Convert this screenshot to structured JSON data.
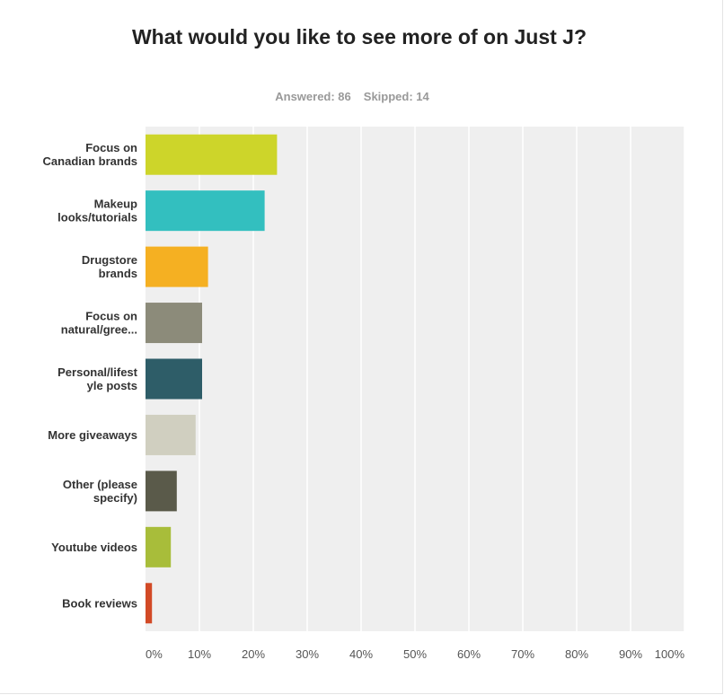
{
  "title": "What would you like to see more of on Just J?",
  "stats": {
    "answered_label": "Answered: 86",
    "skipped_label": "Skipped: 14"
  },
  "colors": {
    "plot_bg": "#efefef",
    "grid": "#ffffff"
  },
  "chart_data": {
    "type": "bar",
    "orientation": "horizontal",
    "title": "What would you like to see more of on Just J?",
    "categories": [
      [
        "Focus on",
        "Canadian brands"
      ],
      [
        "Makeup",
        "looks/tutorials"
      ],
      [
        "Drugstore",
        "brands"
      ],
      [
        "Focus on",
        "natural/gree..."
      ],
      [
        "Personal/lifest",
        "yle posts"
      ],
      [
        "More giveaways"
      ],
      [
        "Other (please",
        "specify)"
      ],
      [
        "Youtube videos"
      ],
      [
        "Book reviews"
      ]
    ],
    "values": [
      24.4,
      22.1,
      11.6,
      10.5,
      10.5,
      9.3,
      5.8,
      4.7,
      1.2
    ],
    "bar_colors": [
      "#cdd52a",
      "#33bfbf",
      "#f5b022",
      "#8c8b7a",
      "#2e5d68",
      "#d0cfc0",
      "#5a5a4a",
      "#a8bd3a",
      "#d24a26"
    ],
    "xlim": [
      0,
      100
    ],
    "x_ticks": [
      "0%",
      "10%",
      "20%",
      "30%",
      "40%",
      "50%",
      "60%",
      "70%",
      "80%",
      "90%",
      "100%"
    ],
    "grid": true,
    "legend": "none"
  }
}
